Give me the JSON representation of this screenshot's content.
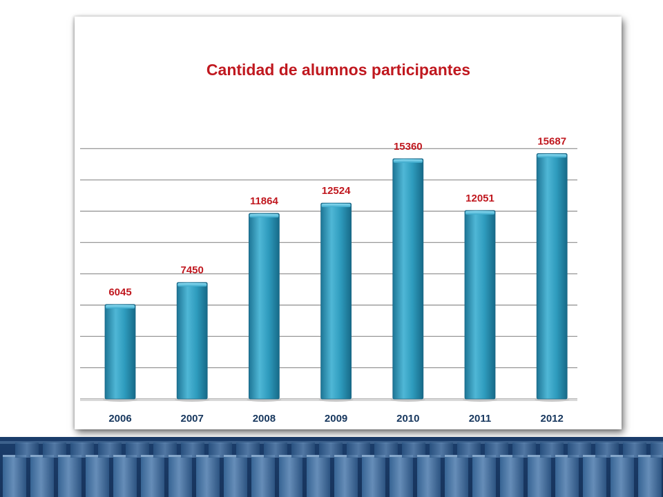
{
  "chart_data": {
    "type": "bar",
    "title": "Cantidad de alumnos participantes",
    "xlabel": "",
    "ylabel": "",
    "categories": [
      "2006",
      "2007",
      "2008",
      "2009",
      "2010",
      "2011",
      "2012"
    ],
    "values": [
      6045,
      7450,
      11864,
      12524,
      15360,
      12051,
      15687
    ],
    "data_labels": [
      "6045",
      "7450",
      "11864",
      "12524",
      "15360",
      "12051",
      "15687"
    ],
    "ylim": [
      0,
      18000
    ],
    "grid": true,
    "legend": "none",
    "colors": {
      "bar": "#2e9bbd",
      "bar_dark": "#1d6f8c",
      "labels": "#c0181f",
      "ticks": "#17375e"
    }
  }
}
